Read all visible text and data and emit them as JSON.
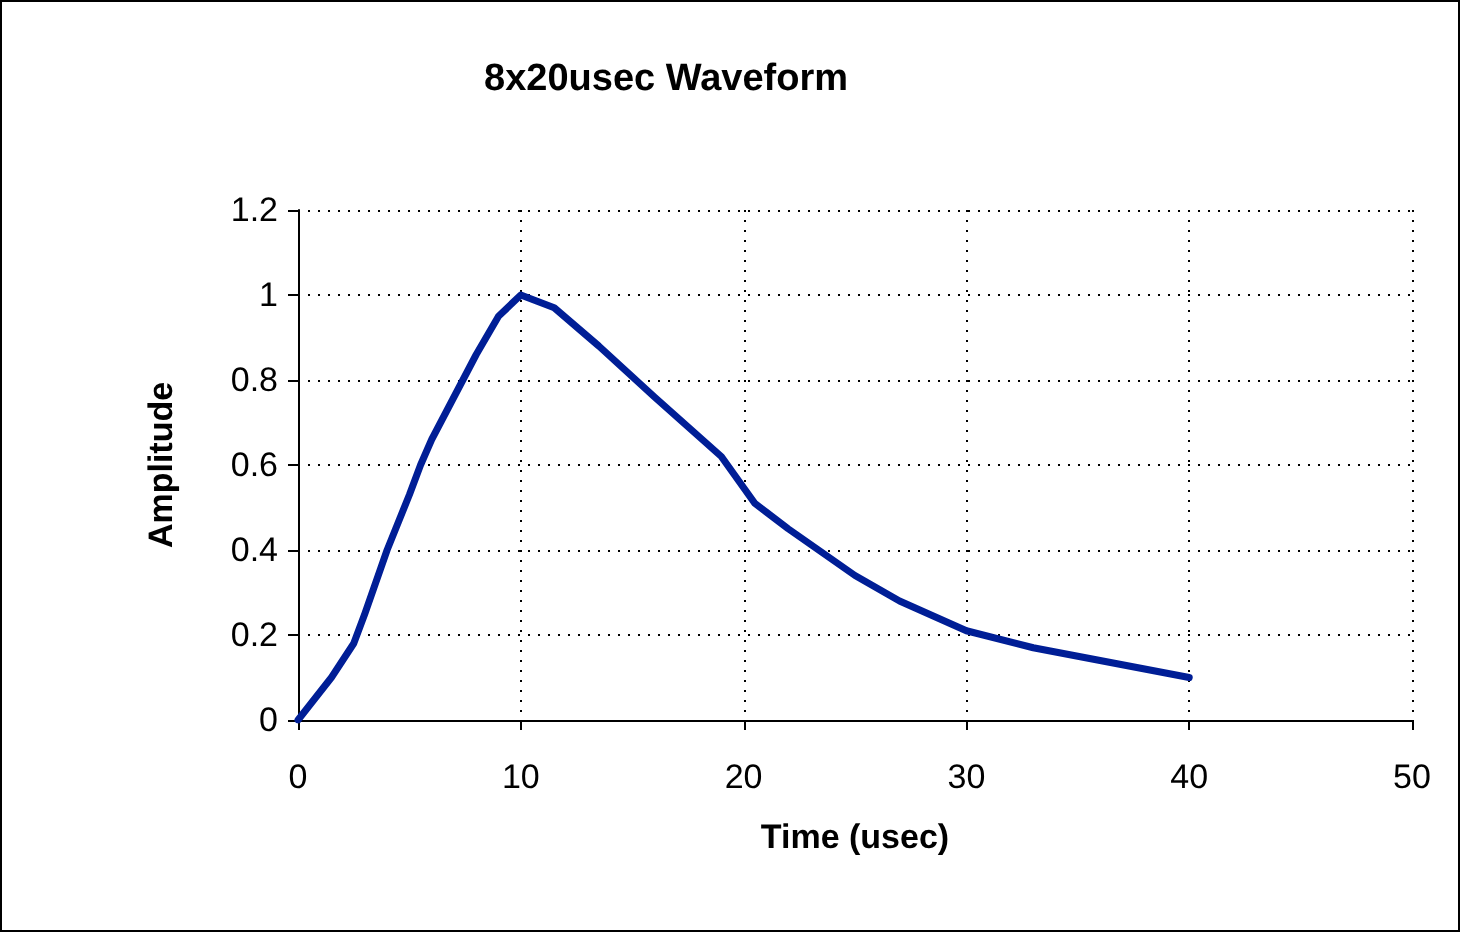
{
  "chart_data": {
    "type": "line",
    "title": "8x20usec Waveform",
    "xlabel": "Time (usec)",
    "ylabel": "Amplitude",
    "series": [
      {
        "color": "#001e96",
        "x": [
          0,
          1.5,
          2.5,
          3,
          4,
          5,
          5.5,
          6,
          7,
          8,
          9,
          10,
          11.5,
          13.5,
          16,
          19,
          20.5,
          22,
          25,
          27,
          30,
          33,
          36,
          40
        ],
        "values": [
          0,
          0.1,
          0.18,
          0.25,
          0.4,
          0.53,
          0.6,
          0.66,
          0.76,
          0.86,
          0.95,
          1.0,
          0.97,
          0.88,
          0.76,
          0.62,
          0.51,
          0.45,
          0.34,
          0.28,
          0.21,
          0.17,
          0.14,
          0.1
        ]
      }
    ],
    "xlim": [
      0,
      50
    ],
    "xticks": [
      0,
      10,
      20,
      30,
      40,
      50
    ],
    "ylim": [
      0,
      1.2
    ],
    "yticks": [
      0,
      0.2,
      0.4,
      0.6,
      0.8,
      1,
      1.2
    ],
    "grid": true,
    "marker": "none",
    "line_style": "solid"
  }
}
